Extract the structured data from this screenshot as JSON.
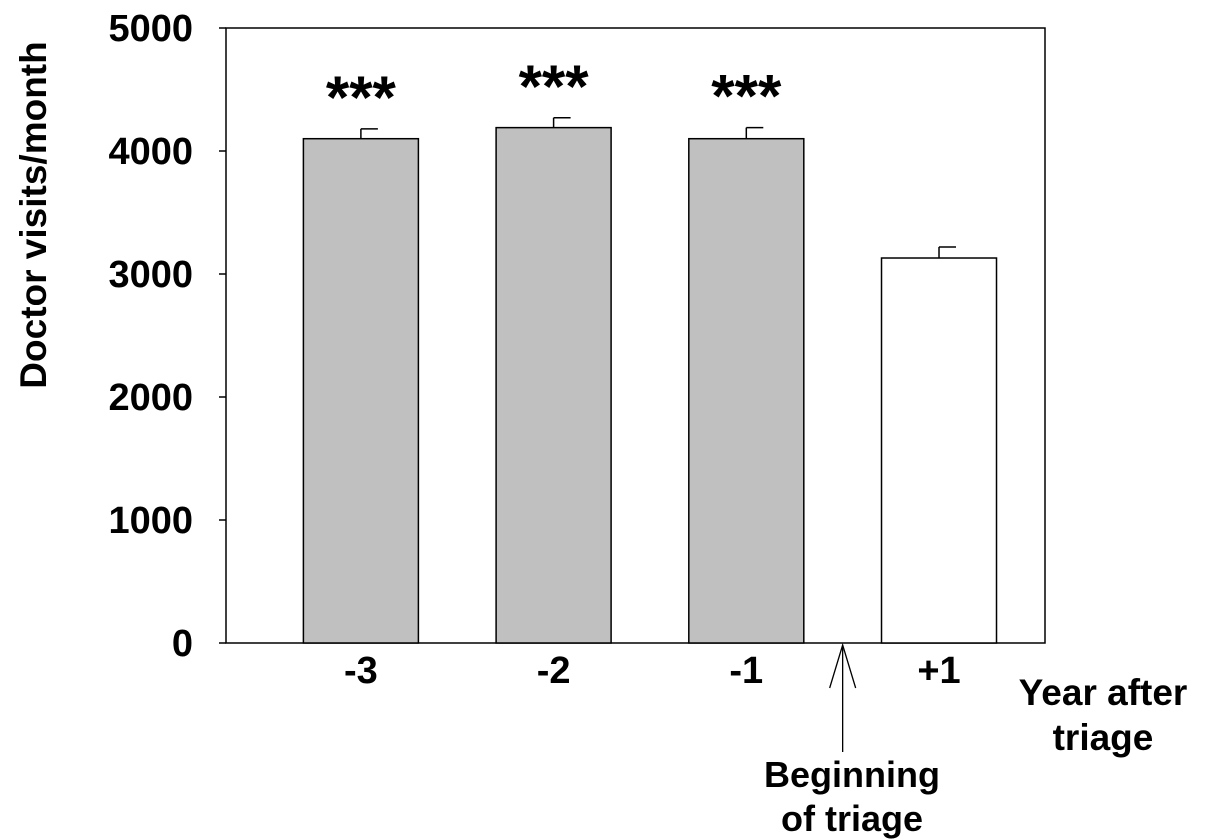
{
  "chart_data": {
    "type": "bar",
    "categories": [
      "-3",
      "-2",
      "-1",
      "+1"
    ],
    "values": [
      4100,
      4190,
      4100,
      3130
    ],
    "error_upper": [
      80,
      80,
      90,
      90
    ],
    "significance": [
      "***",
      "***",
      "***",
      ""
    ],
    "bar_colors": [
      "#c0c0c0",
      "#c0c0c0",
      "#c0c0c0",
      "#ffffff"
    ],
    "ylabel": "Doctor visits/month",
    "xlabel_lines": [
      "Year after",
      "triage"
    ],
    "ylim": [
      0,
      5000
    ],
    "yticks": [
      0,
      1000,
      2000,
      3000,
      4000,
      5000
    ],
    "ytick_labels": [
      "0",
      "1000",
      "2000",
      "3000",
      "4000",
      "5000"
    ],
    "annotation": {
      "lines": [
        "Beginning",
        "of triage"
      ],
      "points_between": [
        "-1",
        "+1"
      ]
    },
    "grid": false,
    "legend": "none"
  }
}
